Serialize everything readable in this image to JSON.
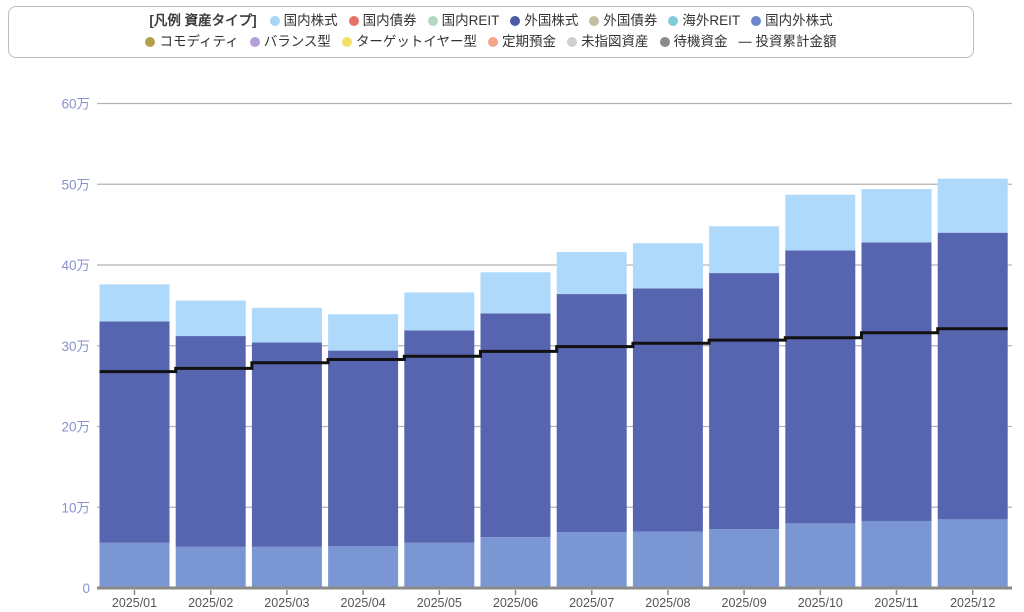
{
  "legend": {
    "title": "[凡例 資産タイプ]",
    "rows": [
      [
        {
          "label": "国内株式",
          "color": "#a8d4f5"
        },
        {
          "label": "国内債券",
          "color": "#e57368"
        },
        {
          "label": "国内REIT",
          "color": "#b2d8c2"
        },
        {
          "label": "外国株式",
          "color": "#4d5aa8"
        },
        {
          "label": "外国債券",
          "color": "#c5bfa2"
        },
        {
          "label": "海外REIT",
          "color": "#82cbd8"
        },
        {
          "label": "国内外株式",
          "color": "#6d86cb"
        }
      ],
      [
        {
          "label": "コモディティ",
          "color": "#b3a04a"
        },
        {
          "label": "バランス型",
          "color": "#b39fd8"
        },
        {
          "label": "ターゲットイヤー型",
          "color": "#f2df6a"
        },
        {
          "label": "定期預金",
          "color": "#f2a58c"
        },
        {
          "label": "未指図資産",
          "color": "#cfcfcf"
        },
        {
          "label": "待機資金",
          "color": "#8a8a8a"
        },
        {
          "label": "投資累計金額",
          "type": "line",
          "symbol": "—",
          "color": "#606060"
        }
      ]
    ]
  },
  "chart_data": {
    "type": "bar",
    "stacked": true,
    "title": "",
    "xlabel": "",
    "ylabel": "",
    "unit": "万",
    "ylim": [
      0,
      60
    ],
    "grid": true,
    "legend_position": "top",
    "categories": [
      "2025/01",
      "2025/02",
      "2025/03",
      "2025/04",
      "2025/05",
      "2025/06",
      "2025/07",
      "2025/08",
      "2025/09",
      "2025/10",
      "2025/11",
      "2025/12"
    ],
    "series": [
      {
        "name": "国内外株式",
        "color": "#7b97d3",
        "values": [
          5.6,
          5.1,
          5.1,
          5.2,
          5.6,
          6.3,
          6.9,
          7.0,
          7.3,
          8.0,
          8.3,
          8.5
        ]
      },
      {
        "name": "外国株式",
        "color": "#5765b0",
        "values": [
          27.4,
          26.1,
          25.3,
          24.2,
          26.3,
          27.7,
          29.5,
          30.1,
          31.7,
          33.8,
          34.5,
          35.5
        ]
      },
      {
        "name": "国内株式",
        "color": "#aed9fb",
        "values": [
          4.6,
          4.4,
          4.3,
          4.5,
          4.7,
          5.1,
          5.2,
          5.6,
          5.8,
          6.9,
          6.6,
          6.7
        ]
      }
    ],
    "line_series": {
      "name": "投資累計金額",
      "color": "#111111",
      "values": [
        26.8,
        27.2,
        27.9,
        28.3,
        28.7,
        29.3,
        29.9,
        30.3,
        30.7,
        31.0,
        31.6,
        32.1
      ]
    },
    "yticks": [
      {
        "value": 0,
        "label": "0"
      },
      {
        "value": 10,
        "label": "10万"
      },
      {
        "value": 20,
        "label": "20万"
      },
      {
        "value": 30,
        "label": "30万"
      },
      {
        "value": 40,
        "label": "40万"
      },
      {
        "value": 50,
        "label": "50万"
      },
      {
        "value": 60,
        "label": "60万"
      }
    ],
    "colors": {
      "grid": "#b3b3b3",
      "axis": "#8a8a8a",
      "ytick_text": "#8992cd",
      "xtick_text": "#555555"
    }
  }
}
